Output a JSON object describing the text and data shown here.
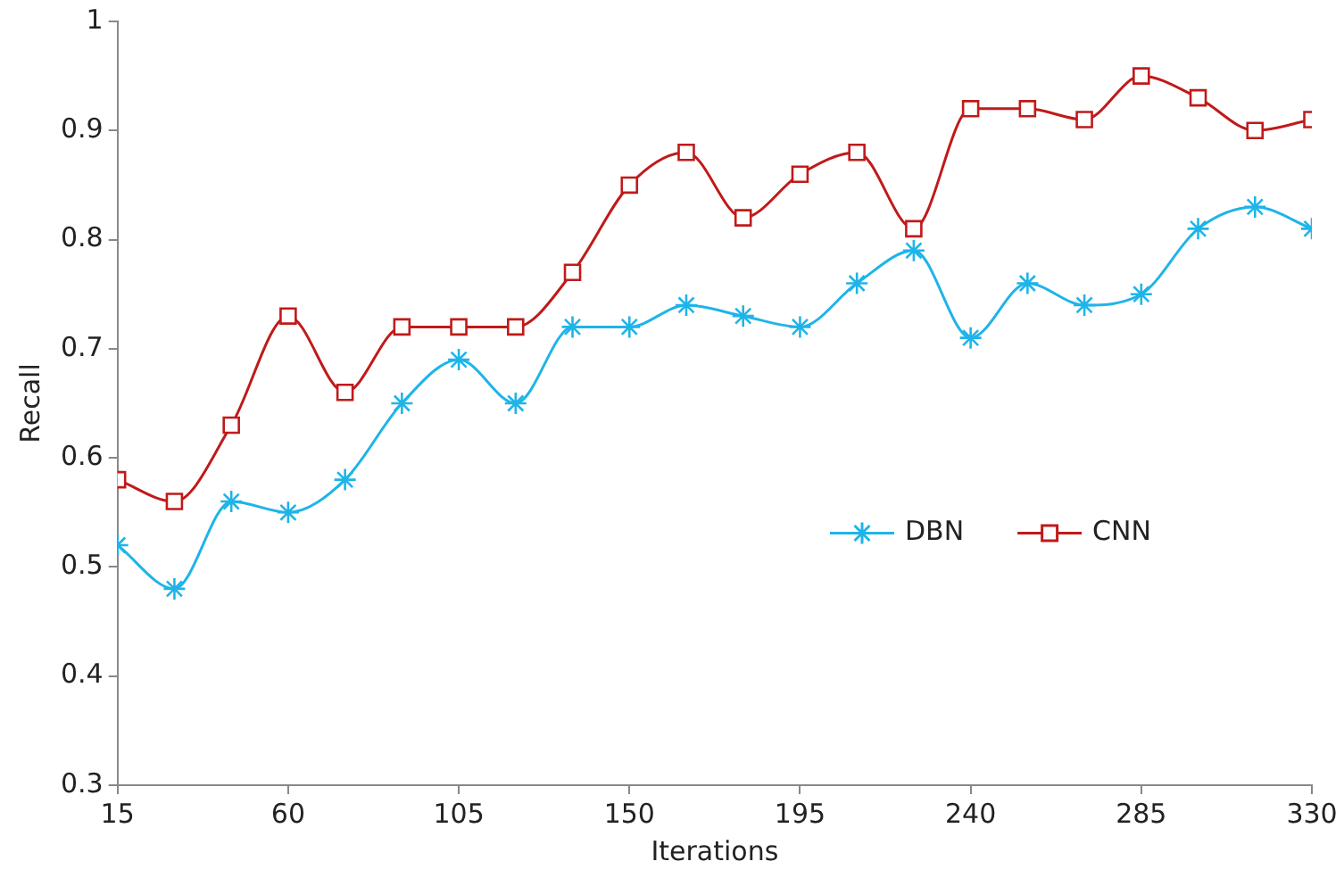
{
  "chart_data": {
    "type": "line",
    "xlabel": "Iterations",
    "ylabel": "Recall",
    "x": [
      15,
      30,
      45,
      60,
      75,
      90,
      105,
      120,
      135,
      150,
      165,
      180,
      195,
      210,
      225,
      240,
      255,
      270,
      285,
      300,
      315,
      330
    ],
    "series": [
      {
        "name": "DBN",
        "color": "#1fb4e8",
        "marker": "cross",
        "values": [
          0.52,
          0.48,
          0.56,
          0.55,
          0.58,
          0.65,
          0.69,
          0.65,
          0.72,
          0.72,
          0.74,
          0.73,
          0.72,
          0.76,
          0.79,
          0.71,
          0.76,
          0.74,
          0.75,
          0.81,
          0.83,
          0.81
        ]
      },
      {
        "name": "CNN",
        "color": "#c01a1a",
        "marker": "square",
        "values": [
          0.58,
          0.56,
          0.63,
          0.73,
          0.66,
          0.72,
          0.72,
          0.72,
          0.77,
          0.85,
          0.88,
          0.82,
          0.86,
          0.88,
          0.81,
          0.92,
          0.92,
          0.91,
          0.95,
          0.93,
          0.9,
          0.91
        ]
      }
    ],
    "xlim": [
      15,
      330
    ],
    "xticks": [
      15,
      60,
      105,
      150,
      195,
      240,
      285,
      330
    ],
    "ylim": [
      0.3,
      1
    ],
    "yticks": [
      0.3,
      0.4,
      0.5,
      0.6,
      0.7,
      0.8,
      0.9,
      1
    ],
    "grid": false,
    "legend": "bottom right",
    "line_style": "solid"
  }
}
